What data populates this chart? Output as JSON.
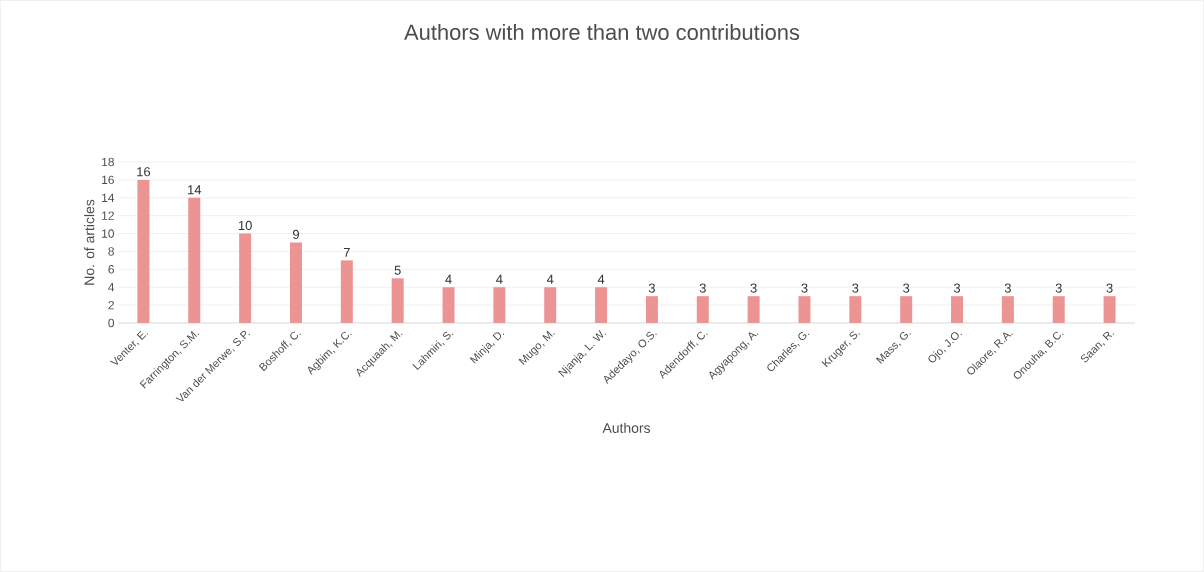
{
  "chart_data": {
    "type": "bar",
    "title": "Authors with more than two contributions",
    "xlabel": "Authors",
    "ylabel": "No. of articles",
    "categories": [
      "Venter, E.",
      "Farrington, S.M.",
      "Van der Merwe, S.P.",
      "Boshoff, C.",
      "Agbim, K.C.",
      "Acquaah, M.",
      "Lahmiri, S.",
      "Minja, D.",
      "Mugo, M.",
      "Njanja, L. W.",
      "Adedayo, O.S.",
      "Adendorff, C.",
      "Agyapong, A.",
      "Charles, G.",
      "Kruger, S.",
      "Mass, G.",
      "Ojo, J.O.",
      "Olaore, R.A.",
      "Onouha, B.C.",
      "Saan, R."
    ],
    "values": [
      16,
      14,
      10,
      9,
      7,
      5,
      4,
      4,
      4,
      4,
      3,
      3,
      3,
      3,
      3,
      3,
      3,
      3,
      3,
      3
    ],
    "color": "#ec9494",
    "ylim": [
      0,
      18
    ],
    "yticks": [
      0,
      2,
      4,
      6,
      8,
      10,
      12,
      14,
      16,
      18
    ],
    "grid": "y",
    "data_labels": true
  }
}
